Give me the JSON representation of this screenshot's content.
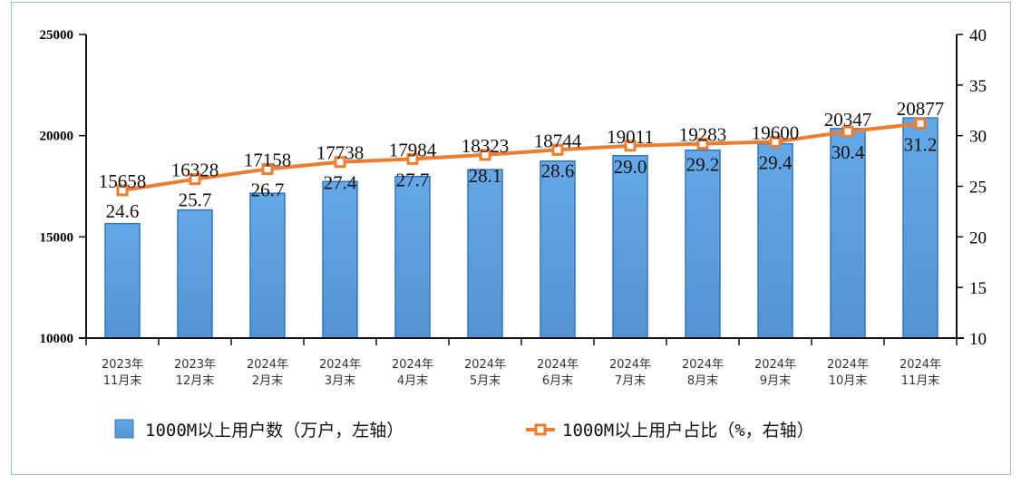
{
  "chart_data": {
    "type": "bar+line",
    "categories": [
      "2023年\n11月末",
      "2023年\n12月末",
      "2024年\n2月末",
      "2024年\n3月末",
      "2024年\n4月末",
      "2024年\n5月末",
      "2024年\n6月末",
      "2024年\n7月末",
      "2024年\n8月末",
      "2024年\n9月末",
      "2024年\n10月末",
      "2024年\n11月末"
    ],
    "series": [
      {
        "name": "1000M以上用户数（万户，左轴）",
        "type": "bar",
        "axis": "left",
        "color": "#5b9fe0",
        "values": [
          15658,
          16328,
          17158,
          17738,
          17984,
          18323,
          18744,
          19011,
          19283,
          19600,
          20347,
          20877
        ]
      },
      {
        "name": "1000M以上用户占比（%，右轴）",
        "type": "line",
        "axis": "right",
        "color": "#ed7d31",
        "values": [
          24.6,
          25.7,
          26.7,
          27.4,
          27.7,
          28.1,
          28.6,
          29.0,
          29.2,
          29.4,
          30.4,
          31.2
        ]
      }
    ],
    "y_left": {
      "range": [
        10000,
        25000
      ],
      "ticks": [
        "10000",
        "15000",
        "20000",
        "25000"
      ]
    },
    "y_right": {
      "range": [
        10,
        40
      ],
      "ticks": [
        "10",
        "15",
        "20",
        "25",
        "30",
        "35",
        "40"
      ]
    },
    "grid": false,
    "legend": "bottom"
  }
}
